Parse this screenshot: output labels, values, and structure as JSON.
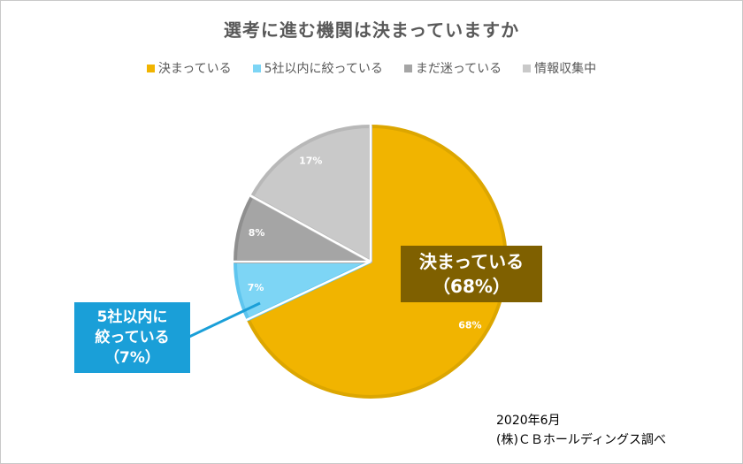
{
  "chart_data": {
    "type": "pie",
    "title": "選考に進む機関は決まっていますか",
    "categories": [
      "決まっている",
      "5社以内に絞っている",
      "まだ迷っている",
      "情報収集中"
    ],
    "values": [
      68,
      7,
      8,
      17
    ],
    "data_labels": [
      "68%",
      "7%",
      "8%",
      "17%"
    ],
    "colors": [
      "#f1b400",
      "#7dd5f5",
      "#a5a5a5",
      "#c9c9c9"
    ],
    "border_colors": [
      "#dca600",
      "#5fc5ee",
      "#8f8f8f",
      "#b8b8b8"
    ],
    "legend_position": "top",
    "callouts": [
      {
        "lines": [
          "決まっている",
          "（68%）"
        ],
        "color": "#7f6000"
      },
      {
        "lines": [
          "5社以内に",
          "絞っている",
          "（7%）"
        ],
        "color": "#1a9fd8"
      }
    ]
  },
  "source": {
    "date": "2020年6月",
    "note": "(株)ＣＢホールディングス調べ"
  }
}
